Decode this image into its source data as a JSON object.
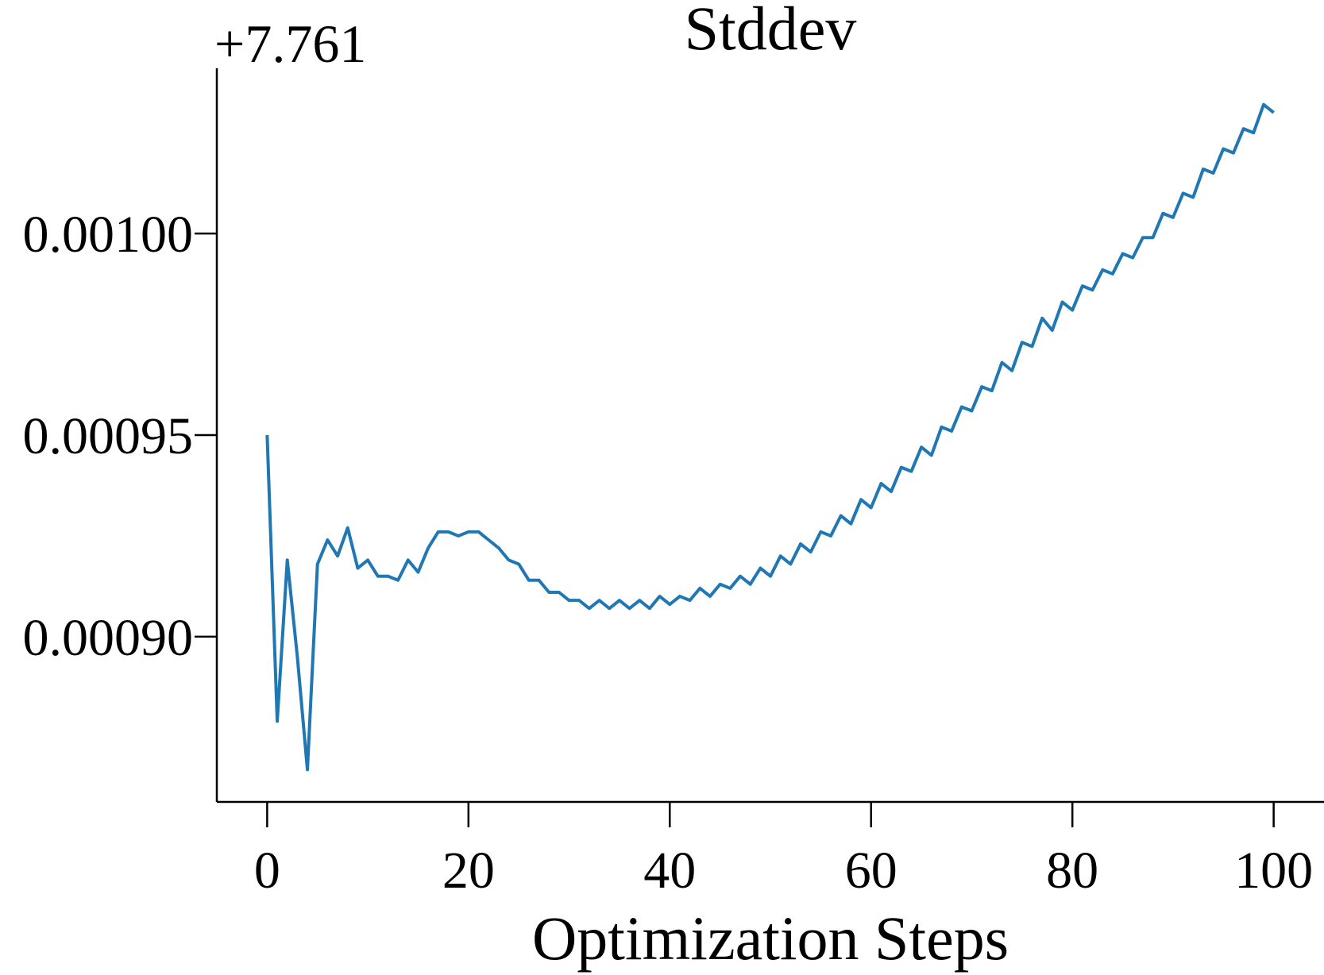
{
  "chart_data": {
    "type": "line",
    "title": "Stddev",
    "xlabel": "Optimization Steps",
    "ylabel": "",
    "y_offset_label": "+7.761",
    "xlim": [
      -5,
      105
    ],
    "ylim": [
      0.000859,
      0.001041
    ],
    "x_ticks": [
      0,
      20,
      40,
      60,
      80,
      100
    ],
    "x_tick_labels": [
      "0",
      "20",
      "40",
      "60",
      "80",
      "100"
    ],
    "y_ticks": [
      0.0009,
      0.00095,
      0.001
    ],
    "y_tick_labels": [
      "0.00090",
      "0.00095",
      "0.00100"
    ],
    "grid": false,
    "legend": "none",
    "series_color": "#1f77b4",
    "series": [
      {
        "x": [
          0,
          1,
          2,
          3,
          4,
          5,
          6,
          7,
          8,
          9,
          10,
          11,
          12,
          13,
          14,
          15,
          16,
          17,
          18,
          19,
          20,
          21,
          22,
          23,
          24,
          25,
          26,
          27,
          28,
          29,
          30,
          31,
          32,
          33,
          34,
          35,
          36,
          37,
          38,
          39,
          40,
          41,
          42,
          43,
          44,
          45,
          46,
          47,
          48,
          49,
          50,
          51,
          52,
          53,
          54,
          55,
          56,
          57,
          58,
          59,
          60,
          61,
          62,
          63,
          64,
          65,
          66,
          67,
          68,
          69,
          70,
          71,
          72,
          73,
          74,
          75,
          76,
          77,
          78,
          79,
          80,
          81,
          82,
          83,
          84,
          85,
          86,
          87,
          88,
          89,
          90,
          91,
          92,
          93,
          94,
          95,
          96,
          97,
          98,
          99,
          100
        ],
        "values": [
          0.00095,
          0.000879,
          0.000919,
          0.000895,
          0.000867,
          0.000918,
          0.000924,
          0.00092,
          0.000927,
          0.000917,
          0.000919,
          0.000915,
          0.000915,
          0.000914,
          0.000919,
          0.000916,
          0.000922,
          0.000926,
          0.000926,
          0.000925,
          0.000926,
          0.000926,
          0.000924,
          0.000922,
          0.000919,
          0.000918,
          0.000914,
          0.000914,
          0.000911,
          0.000911,
          0.000909,
          0.000909,
          0.000907,
          0.000909,
          0.000907,
          0.000909,
          0.000907,
          0.000909,
          0.000907,
          0.00091,
          0.000908,
          0.00091,
          0.000909,
          0.000912,
          0.00091,
          0.000913,
          0.000912,
          0.000915,
          0.000913,
          0.000917,
          0.000915,
          0.00092,
          0.000918,
          0.000923,
          0.000921,
          0.000926,
          0.000925,
          0.00093,
          0.000928,
          0.000934,
          0.000932,
          0.000938,
          0.000936,
          0.000942,
          0.000941,
          0.000947,
          0.000945,
          0.000952,
          0.000951,
          0.000957,
          0.000956,
          0.000962,
          0.000961,
          0.000968,
          0.000966,
          0.000973,
          0.000972,
          0.000979,
          0.000976,
          0.000983,
          0.000981,
          0.000987,
          0.000986,
          0.000991,
          0.00099,
          0.000995,
          0.000994,
          0.000999,
          0.000999,
          0.001005,
          0.001004,
          0.00101,
          0.001009,
          0.001016,
          0.001015,
          0.001021,
          0.00102,
          0.001026,
          0.001025,
          0.001032,
          0.00103
        ]
      }
    ]
  }
}
